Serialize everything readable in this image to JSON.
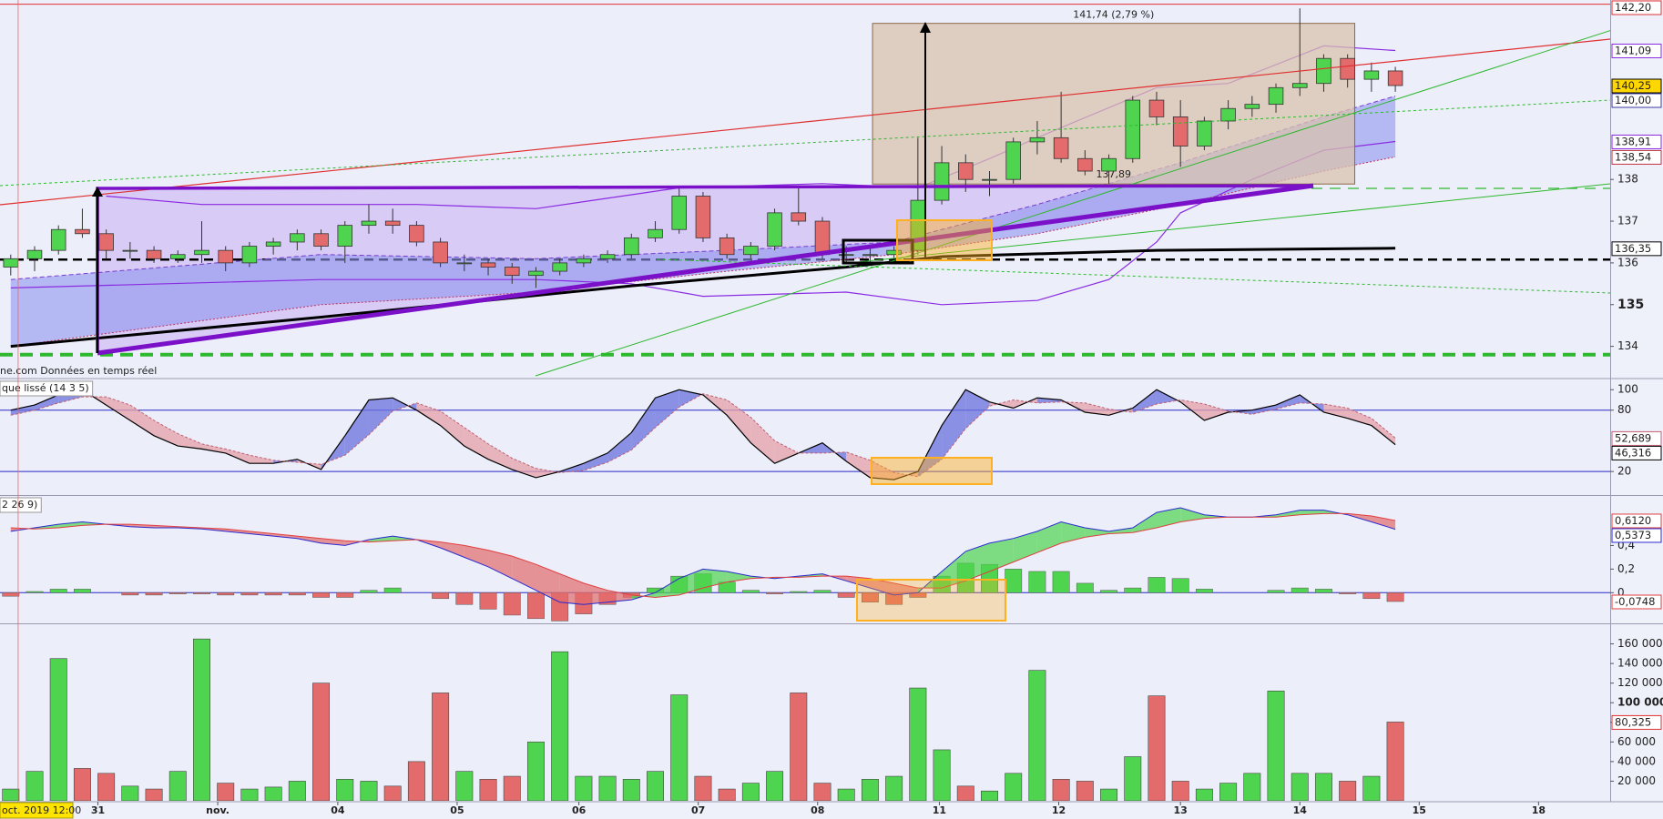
{
  "chart_data": [
    {
      "type": "candlestick",
      "source": "ne.com Données en temps réel",
      "xlim": [
        -0.45,
        67
      ],
      "ylim": [
        133.25,
        142.3
      ],
      "yticks": [
        134,
        135,
        136,
        137,
        138
      ],
      "up_color": "#4fd44f",
      "down_color": "#e36b6b",
      "ohlc": [
        [
          135.9,
          136.2,
          135.7,
          136.1
        ],
        [
          136.1,
          136.4,
          135.8,
          136.3
        ],
        [
          136.3,
          136.9,
          136.2,
          136.8
        ],
        [
          136.8,
          137.3,
          136.6,
          136.7
        ],
        [
          136.7,
          136.8,
          136.1,
          136.3
        ],
        [
          136.3,
          136.5,
          136.1,
          136.3
        ],
        [
          136.3,
          136.4,
          136.0,
          136.1
        ],
        [
          136.1,
          136.3,
          136.0,
          136.2
        ],
        [
          136.2,
          137.0,
          136.0,
          136.3
        ],
        [
          136.3,
          136.4,
          135.8,
          136.0
        ],
        [
          136.0,
          136.5,
          135.9,
          136.4
        ],
        [
          136.4,
          136.6,
          136.2,
          136.5
        ],
        [
          136.5,
          136.8,
          136.3,
          136.7
        ],
        [
          136.7,
          136.8,
          136.3,
          136.4
        ],
        [
          136.4,
          137.0,
          136.0,
          136.9
        ],
        [
          136.9,
          137.4,
          136.7,
          137.0
        ],
        [
          137.0,
          137.3,
          136.7,
          136.9
        ],
        [
          136.9,
          137.0,
          136.4,
          136.5
        ],
        [
          136.5,
          136.6,
          135.9,
          136.0
        ],
        [
          136.0,
          136.2,
          135.8,
          136.0
        ],
        [
          136.0,
          136.1,
          135.7,
          135.9
        ],
        [
          135.9,
          136.0,
          135.5,
          135.7
        ],
        [
          135.7,
          135.9,
          135.4,
          135.8
        ],
        [
          135.8,
          136.1,
          135.7,
          136.0
        ],
        [
          136.0,
          136.2,
          135.9,
          136.1
        ],
        [
          136.1,
          136.3,
          136.0,
          136.2
        ],
        [
          136.2,
          136.7,
          136.1,
          136.6
        ],
        [
          136.6,
          137.0,
          136.5,
          136.8
        ],
        [
          136.8,
          137.8,
          136.7,
          137.6
        ],
        [
          137.6,
          137.7,
          136.5,
          136.6
        ],
        [
          136.6,
          136.7,
          136.1,
          136.2
        ],
        [
          136.2,
          136.5,
          136.1,
          136.4
        ],
        [
          136.4,
          137.3,
          136.3,
          137.2
        ],
        [
          137.2,
          137.8,
          136.9,
          137.0
        ],
        [
          137.0,
          137.1,
          136.1,
          136.2
        ],
        [
          136.2,
          136.4,
          136.0,
          136.2
        ],
        [
          136.2,
          136.4,
          136.0,
          136.2
        ],
        [
          136.2,
          136.4,
          136.1,
          136.3
        ],
        [
          136.3,
          139.0,
          136.2,
          137.5
        ],
        [
          137.5,
          138.8,
          137.4,
          138.4
        ],
        [
          138.4,
          138.6,
          137.7,
          138.0
        ],
        [
          138.0,
          138.2,
          137.6,
          138.0
        ],
        [
          138.0,
          139.0,
          137.9,
          138.9
        ],
        [
          138.9,
          139.4,
          138.6,
          139.0
        ],
        [
          139.0,
          140.1,
          138.4,
          138.5
        ],
        [
          138.5,
          138.7,
          138.1,
          138.2
        ],
        [
          138.2,
          138.6,
          137.9,
          138.5
        ],
        [
          138.5,
          140.0,
          138.4,
          139.9
        ],
        [
          139.9,
          140.1,
          139.3,
          139.5
        ],
        [
          139.5,
          139.9,
          138.3,
          138.8
        ],
        [
          138.8,
          139.5,
          138.7,
          139.4
        ],
        [
          139.4,
          139.9,
          139.2,
          139.7
        ],
        [
          139.7,
          140.0,
          139.5,
          139.8
        ],
        [
          139.8,
          140.3,
          139.6,
          140.2
        ],
        [
          140.2,
          142.1,
          140.0,
          140.3
        ],
        [
          140.3,
          141.0,
          140.1,
          140.9
        ],
        [
          140.9,
          141.0,
          140.2,
          140.4
        ],
        [
          140.4,
          140.8,
          140.1,
          140.6
        ],
        [
          140.6,
          140.7,
          140.1,
          140.25
        ]
      ],
      "bands": [
        {
          "x": [
            0,
            13,
            22,
            30,
            37,
            43,
            49,
            55,
            58
          ],
          "upper": [
            135.6,
            136.2,
            136.1,
            136.3,
            136.5,
            137.4,
            138.4,
            139.5,
            140.0
          ],
          "lower": [
            134.0,
            135.0,
            135.3,
            135.8,
            136.2,
            136.7,
            137.4,
            138.2,
            138.54
          ],
          "color": "#8f96ee"
        }
      ],
      "series": [
        {
          "x": [
            4,
            8,
            17,
            22,
            28,
            34,
            38,
            41,
            43,
            48,
            51,
            55,
            58
          ],
          "values": [
            137.6,
            137.4,
            137.4,
            137.3,
            137.8,
            137.9,
            137.8,
            138.5,
            139.0,
            140.2,
            140.3,
            141.2,
            141.09
          ],
          "color": "#8a2be2",
          "width": 1.2
        },
        {
          "x": [
            0,
            13,
            22,
            26,
            29,
            35,
            39,
            43,
            46,
            48,
            49,
            52,
            55,
            58
          ],
          "values": [
            135.4,
            135.6,
            135.6,
            135.5,
            135.2,
            135.3,
            135.0,
            135.1,
            135.6,
            136.5,
            137.2,
            138.0,
            138.7,
            138.91
          ],
          "color": "#8a2be2",
          "width": 1.2
        },
        {
          "x": [
            0,
            13,
            26,
            35,
            39,
            48,
            58
          ],
          "values": [
            134.0,
            134.7,
            135.45,
            135.9,
            136.15,
            136.3,
            136.35
          ],
          "color": "#000000",
          "width": 3
        }
      ],
      "levels": [
        {
          "value": 142.2,
          "color": "#e03030",
          "width": 1
        },
        {
          "value": 136.08,
          "color": "#000000",
          "width": 2.5,
          "dash": "10,6"
        },
        {
          "value": 133.8,
          "color": "#2eb82e",
          "width": 4,
          "dash": "14,8"
        }
      ],
      "measure": {
        "x": [
          36.1,
          56.3
        ],
        "low": 137.89,
        "high": 141.74,
        "label": "141,74 (2,79 %)",
        "low_label": "137,89"
      },
      "markers": [
        {
          "value": 142.2,
          "label": "142,20",
          "color": "#e03030",
          "fill": "#ffffff"
        },
        {
          "value": 141.09,
          "label": "141,09",
          "color": "#8a2be2",
          "fill": "#ffffff"
        },
        {
          "value": 140.25,
          "label": "140,25",
          "color": "#000000",
          "fill": "#ffd700"
        },
        {
          "value": 140.0,
          "label": "140,00",
          "color": "#3a3aa0",
          "fill": "#ffffff"
        },
        {
          "value": 138.91,
          "label": "138,91",
          "color": "#8a2be2",
          "fill": "#ffffff"
        },
        {
          "value": 138.54,
          "label": "138,54",
          "color": "#c03040",
          "fill": "#ffffff"
        },
        {
          "value": 136.35,
          "label": "136,35",
          "color": "#000000",
          "fill": "#ffffff"
        }
      ]
    },
    {
      "type": "stochastic",
      "title": "que lissé (14 3 5)",
      "xlim": [
        -0.45,
        67
      ],
      "ylim": [
        -3,
        110
      ],
      "yticks": [
        20,
        80,
        100
      ],
      "levels": [
        {
          "value": 20,
          "color": "#2828c8",
          "width": 1
        },
        {
          "value": 80,
          "color": "#2828c8",
          "width": 1
        }
      ],
      "up_color": "#6a70dc",
      "down_color": "#e6a0a8",
      "series": [
        {
          "values": [
            80,
            85,
            95,
            100,
            85,
            70,
            55,
            45,
            42,
            38,
            28,
            28,
            32,
            22,
            55,
            90,
            92,
            80,
            65,
            45,
            32,
            22,
            14,
            20,
            28,
            38,
            58,
            92,
            100,
            95,
            75,
            48,
            28,
            38,
            48,
            30,
            14,
            12,
            20,
            65,
            100,
            88,
            82,
            92,
            90,
            78,
            75,
            82,
            100,
            88,
            70,
            78,
            80,
            85,
            95,
            78,
            72,
            65,
            46.316
          ],
          "color": "#000000",
          "width": 1.2
        },
        {
          "values": [
            75,
            80,
            87,
            93,
            93,
            85,
            70,
            57,
            47,
            42,
            36,
            31,
            29,
            27,
            36,
            56,
            79,
            87,
            79,
            63,
            47,
            33,
            23,
            19,
            21,
            29,
            41,
            63,
            83,
            96,
            90,
            73,
            50,
            38,
            38,
            39,
            31,
            19,
            15,
            32,
            62,
            84,
            90,
            87,
            88,
            87,
            81,
            78,
            86,
            90,
            86,
            79,
            76,
            81,
            87,
            86,
            82,
            72,
            52.689
          ],
          "color": "#c06070",
          "width": 1,
          "dash": "3,2"
        }
      ],
      "markers": [
        {
          "value": 52.689,
          "label": "52,689",
          "color": "#c06070",
          "fill": "#ffffff"
        },
        {
          "value": 46.316,
          "label": "46,316",
          "color": "#000000",
          "fill": "#ffffff"
        }
      ]
    },
    {
      "type": "macd",
      "title": "2 26 9)",
      "xlim": [
        -0.45,
        67
      ],
      "ylim": [
        -0.26,
        0.82
      ],
      "yticks": [
        0,
        {
          "value": 0.2,
          "label": "0,2"
        },
        {
          "value": 0.4,
          "label": "0,4"
        }
      ],
      "levels": [
        {
          "value": 0,
          "color": "#2828c8",
          "width": 1
        }
      ],
      "up_color": "#4fd44f",
      "down_color": "#e36b6b",
      "histogram": [
        -0.03,
        0.01,
        0.03,
        0.03,
        0,
        -0.02,
        -0.02,
        -0.01,
        -0.01,
        -0.02,
        -0.02,
        -0.02,
        -0.02,
        -0.04,
        -0.04,
        0.02,
        0.04,
        0,
        -0.05,
        -0.1,
        -0.14,
        -0.19,
        -0.22,
        -0.24,
        -0.18,
        -0.1,
        -0.04,
        0.04,
        0.14,
        0.16,
        0.09,
        0.02,
        -0.01,
        0.01,
        0.02,
        -0.04,
        -0.08,
        -0.1,
        -0.04,
        0.14,
        0.25,
        0.24,
        0.2,
        0.18,
        0.18,
        0.08,
        0.02,
        0.04,
        0.13,
        0.12,
        0.03,
        0,
        0,
        0.02,
        0.04,
        0.03,
        -0.01,
        -0.05,
        -0.0748
      ],
      "series": [
        {
          "values": [
            0.52,
            0.55,
            0.58,
            0.6,
            0.58,
            0.56,
            0.55,
            0.55,
            0.54,
            0.52,
            0.5,
            0.48,
            0.46,
            0.42,
            0.4,
            0.45,
            0.48,
            0.45,
            0.38,
            0.3,
            0.22,
            0.12,
            0.02,
            -0.08,
            -0.1,
            -0.08,
            -0.06,
            0,
            0.12,
            0.2,
            0.18,
            0.14,
            0.12,
            0.14,
            0.16,
            0.1,
            0.04,
            -0.02,
            0,
            0.18,
            0.35,
            0.42,
            0.46,
            0.52,
            0.6,
            0.55,
            0.52,
            0.55,
            0.68,
            0.72,
            0.66,
            0.64,
            0.64,
            0.66,
            0.7,
            0.7,
            0.66,
            0.6,
            0.5373
          ],
          "color": "#2a2ad0",
          "width": 1
        },
        {
          "values": [
            0.55,
            0.54,
            0.55,
            0.57,
            0.58,
            0.58,
            0.57,
            0.56,
            0.55,
            0.54,
            0.52,
            0.5,
            0.48,
            0.46,
            0.44,
            0.43,
            0.44,
            0.45,
            0.43,
            0.4,
            0.36,
            0.31,
            0.24,
            0.16,
            0.08,
            0.02,
            -0.02,
            -0.04,
            -0.02,
            0.04,
            0.09,
            0.12,
            0.13,
            0.13,
            0.14,
            0.14,
            0.12,
            0.08,
            0.04,
            0.04,
            0.1,
            0.18,
            0.26,
            0.34,
            0.42,
            0.47,
            0.5,
            0.51,
            0.55,
            0.6,
            0.63,
            0.64,
            0.64,
            0.64,
            0.66,
            0.67,
            0.67,
            0.65,
            0.612
          ],
          "color": "#e04040",
          "width": 1
        }
      ],
      "markers": [
        {
          "value": 0.612,
          "label": "0,6120",
          "color": "#e04040",
          "fill": "#ffffff"
        },
        {
          "value": 0.5373,
          "label": "0,5373",
          "color": "#2a2ad0",
          "fill": "#ffffff"
        },
        {
          "value": -0.0748,
          "label": "-0,0748",
          "color": "#e04040",
          "fill": "#ffffff"
        }
      ]
    },
    {
      "type": "volume",
      "xlim": [
        -0.45,
        67
      ],
      "ylim": [
        0,
        180000
      ],
      "yticks": [
        {
          "value": 20000,
          "label": "20 000"
        },
        {
          "value": 40000,
          "label": "40 000"
        },
        {
          "value": 60000,
          "label": "60 000"
        },
        {
          "value": 80000,
          "label": "80 000"
        },
        {
          "value": 100000,
          "label": "100 000",
          "bold": true
        },
        {
          "value": 120000,
          "label": "120 000"
        },
        {
          "value": 140000,
          "label": "140 000"
        },
        {
          "value": 160000,
          "label": "160 000"
        }
      ],
      "up_color": "#4fd44f",
      "down_color": "#e36b6b",
      "values": [
        12000,
        30000,
        145000,
        33000,
        28000,
        15000,
        12000,
        30000,
        165000,
        18000,
        12000,
        14000,
        20000,
        120000,
        22000,
        20000,
        15000,
        40000,
        110000,
        30000,
        22000,
        25000,
        60000,
        152000,
        25000,
        25000,
        22000,
        30000,
        108000,
        25000,
        12000,
        18000,
        30000,
        110000,
        18000,
        12000,
        22000,
        25000,
        115000,
        52000,
        15000,
        10000,
        28000,
        133000,
        22000,
        20000,
        12000,
        45000,
        107000,
        20000,
        12000,
        18000,
        28000,
        112000,
        28000,
        28000,
        20000,
        25000,
        80325
      ],
      "markers": [
        {
          "value": 80325,
          "label": "80,325",
          "color": "#e03030",
          "fill": "#ffffff"
        }
      ],
      "xticks": [
        {
          "value": 3.65,
          "label": "31"
        },
        {
          "value": 8.67,
          "label": "nov."
        },
        {
          "value": 13.7,
          "label": "04"
        },
        {
          "value": 18.7,
          "label": "05"
        },
        {
          "value": 23.8,
          "label": "06"
        },
        {
          "value": 28.8,
          "label": "07"
        },
        {
          "value": 33.8,
          "label": "08"
        },
        {
          "value": 38.9,
          "label": "11"
        },
        {
          "value": 43.9,
          "label": "12"
        },
        {
          "value": 49.0,
          "label": "13"
        },
        {
          "value": 54.0,
          "label": "14"
        },
        {
          "value": 59.0,
          "label": "15"
        },
        {
          "value": 64.0,
          "label": "18"
        }
      ],
      "crosshair": {
        "value": 0.31,
        "label": "oct. 2019 12:00"
      }
    }
  ]
}
